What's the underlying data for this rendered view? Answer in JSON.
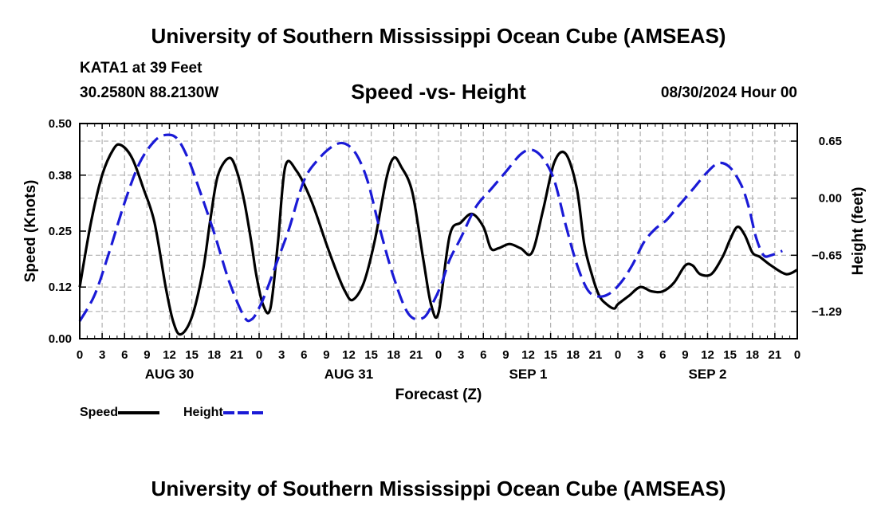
{
  "page": {
    "title": "University of Southern Mississippi Ocean Cube (AMSEAS)",
    "station": "KATA1 at 39 Feet",
    "coords": "30.2580N  88.2130W",
    "subtitle": "Speed -vs- Height",
    "datetime": "08/30/2024 Hour 00",
    "footer_title": "University of Southern Mississippi Ocean Cube (AMSEAS)"
  },
  "legend": {
    "speed_label": "Speed",
    "height_label": "Height"
  },
  "colors": {
    "speed": "#000000",
    "height": "#1a1ad6",
    "grid": "#b0b0b0"
  },
  "chart_data": {
    "type": "line",
    "xlabel": "Forecast (Z)",
    "ylabel": "Speed (Knots)",
    "y2label": "Height (feet)",
    "xlim": [
      0,
      96
    ],
    "ylim": [
      0,
      0.5
    ],
    "y2lim": [
      -1.6,
      0.85
    ],
    "grid": true,
    "x_tick_labels": [
      "0",
      "3",
      "6",
      "9",
      "12",
      "15",
      "18",
      "21",
      "0",
      "3",
      "6",
      "9",
      "12",
      "15",
      "18",
      "21",
      "0",
      "3",
      "6",
      "9",
      "12",
      "15",
      "18",
      "21",
      "0",
      "3",
      "6",
      "9",
      "12",
      "15",
      "18",
      "21",
      "0"
    ],
    "day_labels": [
      {
        "hour": 12,
        "label": "AUG 30"
      },
      {
        "hour": 36,
        "label": "AUG 31"
      },
      {
        "hour": 60,
        "label": "SEP 1"
      },
      {
        "hour": 84,
        "label": "SEP 2"
      }
    ],
    "y_ticks": [
      0.0,
      0.12,
      0.25,
      0.38,
      0.5
    ],
    "y_tick_labels": [
      "0.00",
      "0.12",
      "0.25",
      "0.38",
      "0.50"
    ],
    "y2_ticks": [
      0.65,
      0.0,
      -0.65,
      -1.29
    ],
    "y2_tick_labels": [
      "0.65",
      "0.00",
      "−0.65",
      "−1.29"
    ],
    "series": [
      {
        "name": "Speed",
        "axis": "left",
        "style": "solid",
        "x": [
          0,
          1.5,
          3,
          4.5,
          5.5,
          7,
          8.5,
          10,
          11.5,
          12.5,
          13.5,
          15,
          16.5,
          17.5,
          18.5,
          20,
          21,
          22,
          23,
          23.6,
          24.5,
          25.5,
          26.5,
          27.5,
          29,
          31,
          33,
          34.5,
          35.5,
          36.5,
          38,
          39.5,
          41,
          42,
          43,
          44.5,
          46,
          47,
          48,
          49.5,
          51,
          52.5,
          54,
          55,
          56,
          57.5,
          59,
          60.5,
          62,
          63.5,
          65,
          66.5,
          67.5,
          68.5,
          69.5,
          70.5,
          71.5,
          72,
          73.5,
          75,
          76.5,
          78,
          79.5,
          81,
          82,
          83,
          84.5,
          86,
          87,
          88,
          89,
          90,
          91,
          92.5,
          94.5,
          96
        ],
        "values": [
          0.12,
          0.27,
          0.38,
          0.44,
          0.45,
          0.42,
          0.35,
          0.27,
          0.12,
          0.04,
          0.01,
          0.05,
          0.16,
          0.28,
          0.38,
          0.42,
          0.39,
          0.32,
          0.22,
          0.15,
          0.08,
          0.07,
          0.22,
          0.4,
          0.39,
          0.32,
          0.22,
          0.15,
          0.11,
          0.09,
          0.13,
          0.23,
          0.37,
          0.42,
          0.4,
          0.34,
          0.18,
          0.08,
          0.06,
          0.24,
          0.27,
          0.29,
          0.26,
          0.21,
          0.21,
          0.22,
          0.21,
          0.2,
          0.3,
          0.41,
          0.43,
          0.35,
          0.22,
          0.15,
          0.1,
          0.08,
          0.07,
          0.08,
          0.1,
          0.12,
          0.11,
          0.11,
          0.13,
          0.17,
          0.17,
          0.15,
          0.15,
          0.19,
          0.23,
          0.26,
          0.24,
          0.2,
          0.19,
          0.17,
          0.15,
          0.16
        ]
      },
      {
        "name": "Height",
        "axis": "right",
        "style": "dashed",
        "x": [
          0,
          2,
          4,
          6,
          8,
          10,
          11.5,
          13,
          14.5,
          16,
          18,
          20,
          22,
          23,
          24,
          25,
          26.5,
          28,
          30,
          32,
          34,
          35.5,
          37,
          38.5,
          40,
          42,
          44,
          46,
          47.5,
          48.5,
          49.5,
          51,
          53,
          55,
          57,
          59,
          60.5,
          62,
          63.5,
          65,
          66.5,
          68,
          69.5,
          71,
          72.5,
          74,
          75.5,
          77,
          78.5,
          80,
          82,
          84,
          85.5,
          87,
          88.5,
          89.5,
          90.5,
          91.5,
          92.5,
          94
        ],
        "values": [
          -1.4,
          -1.1,
          -0.6,
          -0.05,
          0.4,
          0.65,
          0.72,
          0.68,
          0.45,
          0.1,
          -0.4,
          -0.95,
          -1.35,
          -1.38,
          -1.25,
          -1.05,
          -0.7,
          -0.35,
          0.2,
          0.45,
          0.6,
          0.62,
          0.5,
          0.2,
          -0.3,
          -0.9,
          -1.32,
          -1.36,
          -1.15,
          -0.95,
          -0.7,
          -0.45,
          -0.1,
          0.1,
          0.3,
          0.5,
          0.55,
          0.45,
          0.2,
          -0.3,
          -0.75,
          -1.05,
          -1.12,
          -1.08,
          -0.95,
          -0.75,
          -0.5,
          -0.35,
          -0.25,
          -0.1,
          0.1,
          0.3,
          0.4,
          0.35,
          0.15,
          -0.1,
          -0.45,
          -0.65,
          -0.65,
          -0.6
        ]
      }
    ]
  }
}
